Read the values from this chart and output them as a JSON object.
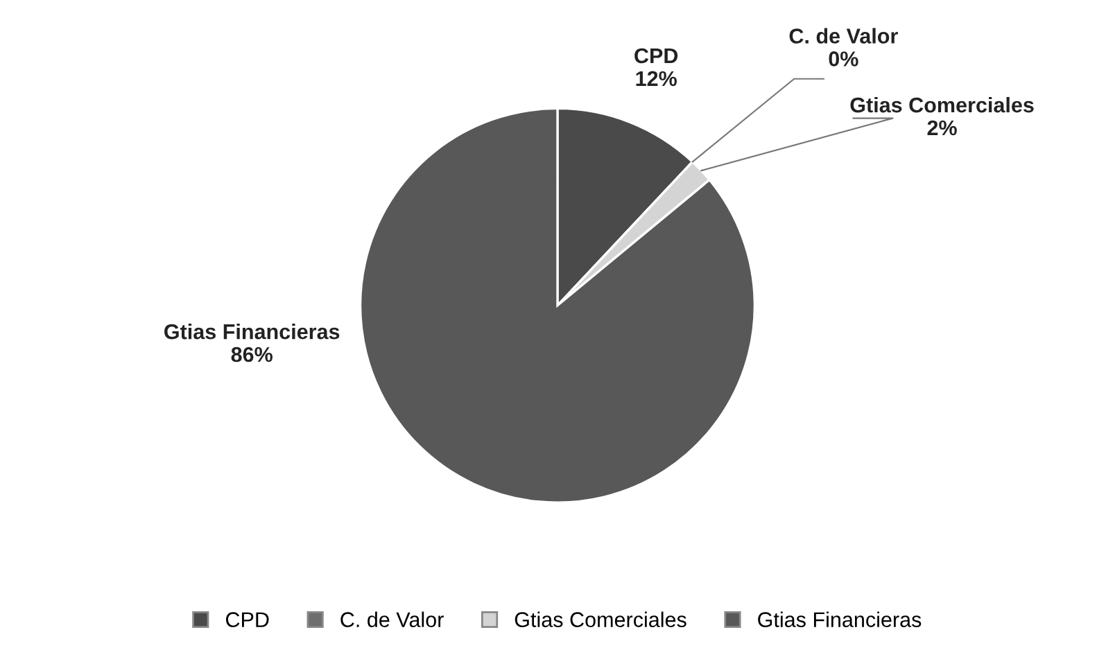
{
  "chart_data": {
    "type": "pie",
    "categories": [
      "CPD",
      "C. de Valor",
      "Gtias Comerciales",
      "Gtias Financieras"
    ],
    "values": [
      12,
      0,
      2,
      86
    ],
    "colors": [
      "#4a4a4a",
      "#6e6e6e",
      "#d4d4d4",
      "#585858"
    ],
    "value_labels": [
      "12%",
      "0%",
      "2%",
      "86%"
    ],
    "legend": "bottom"
  }
}
